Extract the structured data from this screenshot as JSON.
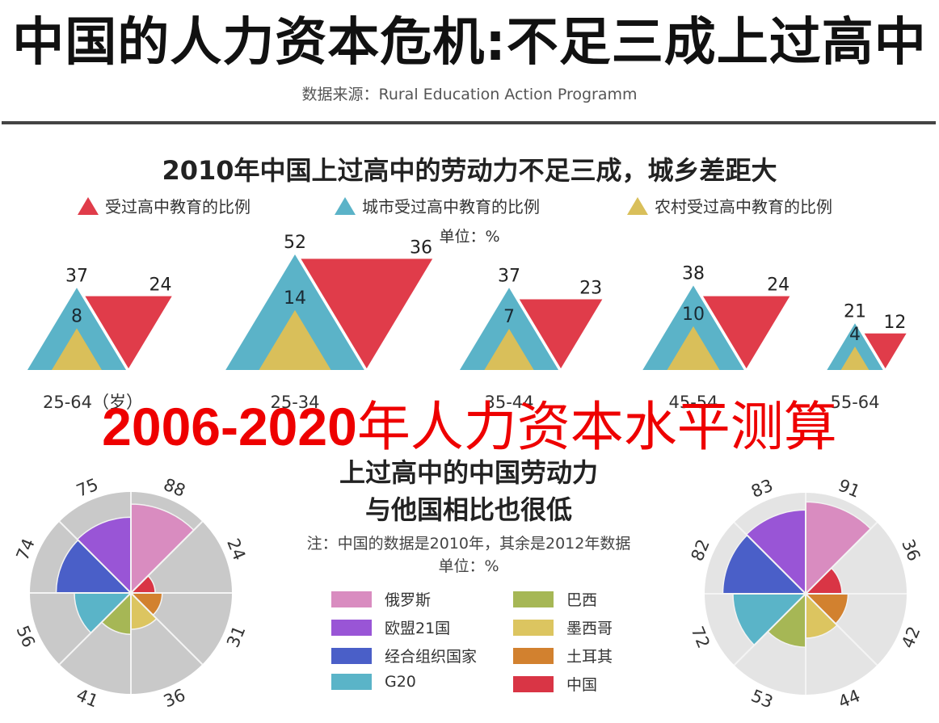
{
  "header": {
    "title": "中国的人力资本危机:不足三成上过高中",
    "source": "数据来源：Rural Education Action Programm"
  },
  "overlay": {
    "title_num": "2006-2020",
    "title_text": "年人力资本水平测算",
    "color": "#ee0000"
  },
  "section1": {
    "title": "2010年中国上过高中的劳动力不足三成，城乡差距大",
    "unit": "单位：%",
    "legend": [
      {
        "label": "受过高中教育的比例",
        "color": "#e03c4a"
      },
      {
        "label": "城市受过高中教育的比例",
        "color": "#5bb3c8"
      },
      {
        "label": "农村受过高中教育的比例",
        "color": "#d9bf5a"
      }
    ]
  },
  "section2": {
    "title_line1": "上过高中的中国劳动力",
    "title_line2": "与他国相比也很低",
    "note": "注：中国的数据是2010年，其余是2012年数据",
    "unit": "单位：%",
    "legend_left": [
      {
        "label": "俄罗斯",
        "color": "#d98cc0"
      },
      {
        "label": "欧盟21国",
        "color": "#9955d6"
      },
      {
        "label": "经合组织国家",
        "color": "#4a5fc8"
      },
      {
        "label": "G20",
        "color": "#5ab4c8"
      }
    ],
    "legend_right": [
      {
        "label": "巴西",
        "color": "#a6b755"
      },
      {
        "label": "墨西哥",
        "color": "#dcc560"
      },
      {
        "label": "土耳其",
        "color": "#d2812f"
      },
      {
        "label": "中国",
        "color": "#d93545"
      }
    ]
  },
  "chart_data": [
    {
      "type": "bar",
      "title": "2010年中国上过高中的劳动力不足三成，城乡差距大",
      "subtitle": "单位：%",
      "categories": [
        "25-64（岁）",
        "25-34",
        "35-44",
        "45-54",
        "55-64"
      ],
      "series": [
        {
          "name": "受过高中教育的比例",
          "color": "#e03c4a",
          "values": [
            24,
            36,
            23,
            24,
            12
          ]
        },
        {
          "name": "城市受过高中教育的比例",
          "color": "#5bb3c8",
          "values": [
            37,
            52,
            37,
            38,
            21
          ]
        },
        {
          "name": "农村受过高中教育的比例",
          "color": "#d9bf5a",
          "values": [
            8,
            14,
            7,
            10,
            4
          ]
        }
      ],
      "xlabel": "",
      "ylabel": "%",
      "legend_position": "top",
      "grid": false
    },
    {
      "type": "pie",
      "subtype": "polar-area",
      "title": "上过高中的中国劳动力与他国相比也很低",
      "note": "注：中国的数据是2010年，其余是2012年数据",
      "position": "left",
      "categories": [
        "俄罗斯",
        "中国",
        "土耳其",
        "墨西哥",
        "巴西",
        "G20",
        "经合组织国家",
        "欧盟21国"
      ],
      "values": [
        88,
        24,
        31,
        36,
        41,
        56,
        74,
        75
      ],
      "colors": [
        "#d98cc0",
        "#d93545",
        "#d2812f",
        "#dcc560",
        "#a6b755",
        "#5ab4c8",
        "#4a5fc8",
        "#9955d6"
      ],
      "background": "#c9c9c9",
      "rmax": 100
    },
    {
      "type": "pie",
      "subtype": "polar-area",
      "title": "上过高中的中国劳动力与他国相比也很低",
      "position": "right",
      "categories": [
        "俄罗斯",
        "中国",
        "土耳其",
        "墨西哥",
        "巴西",
        "G20",
        "经合组织国家",
        "欧盟21国"
      ],
      "values": [
        91,
        36,
        42,
        44,
        53,
        72,
        82,
        83
      ],
      "colors": [
        "#d98cc0",
        "#d93545",
        "#d2812f",
        "#dcc560",
        "#a6b755",
        "#5ab4c8",
        "#4a5fc8",
        "#9955d6"
      ],
      "background": "#e4e4e4",
      "rmax": 100
    }
  ]
}
